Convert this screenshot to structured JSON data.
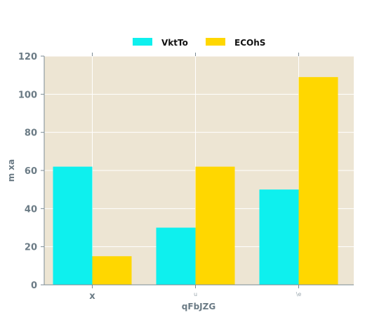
{
  "chart_data": {
    "type": "bar",
    "categories": [
      "x",
      "u",
      "\\e"
    ],
    "series": [
      {
        "name": "VktTo",
        "color": "#0ef0ee",
        "values": [
          62,
          30,
          50
        ]
      },
      {
        "name": "ECOhS",
        "color": "#ffd700",
        "values": [
          15,
          62,
          109
        ]
      }
    ],
    "xlabel": "qFbJZG",
    "ylabel": "m xa",
    "ylim": [
      0,
      120
    ],
    "yticks": [
      0,
      20,
      40,
      60,
      80,
      100,
      120
    ],
    "grid": true,
    "legend": "top-center",
    "plot_background": "#ede5d3",
    "grid_color": "#ffffff"
  }
}
